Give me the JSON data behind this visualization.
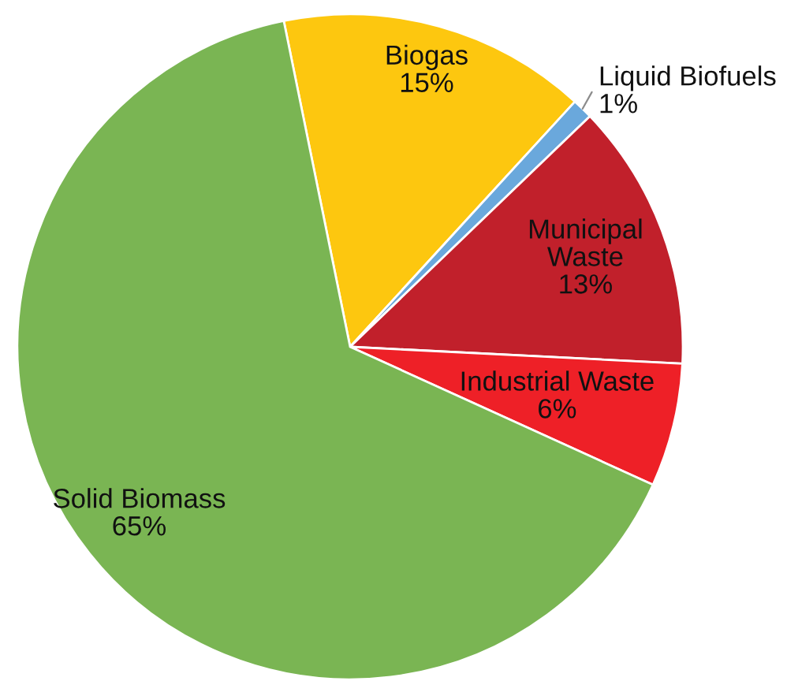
{
  "chart_data": {
    "type": "pie",
    "categories": [
      "Biogas",
      "Liquid Biofuels",
      "Municipal\nWaste",
      "Industrial Waste",
      "Solid Biomass"
    ],
    "values": [
      15,
      1,
      13,
      6,
      65
    ],
    "value_labels": [
      "15%",
      "1%",
      "13%",
      "6%",
      "65%"
    ],
    "colors": [
      "#fdc70f",
      "#6aa8dc",
      "#c1202b",
      "#ee2027",
      "#7ab553"
    ]
  }
}
